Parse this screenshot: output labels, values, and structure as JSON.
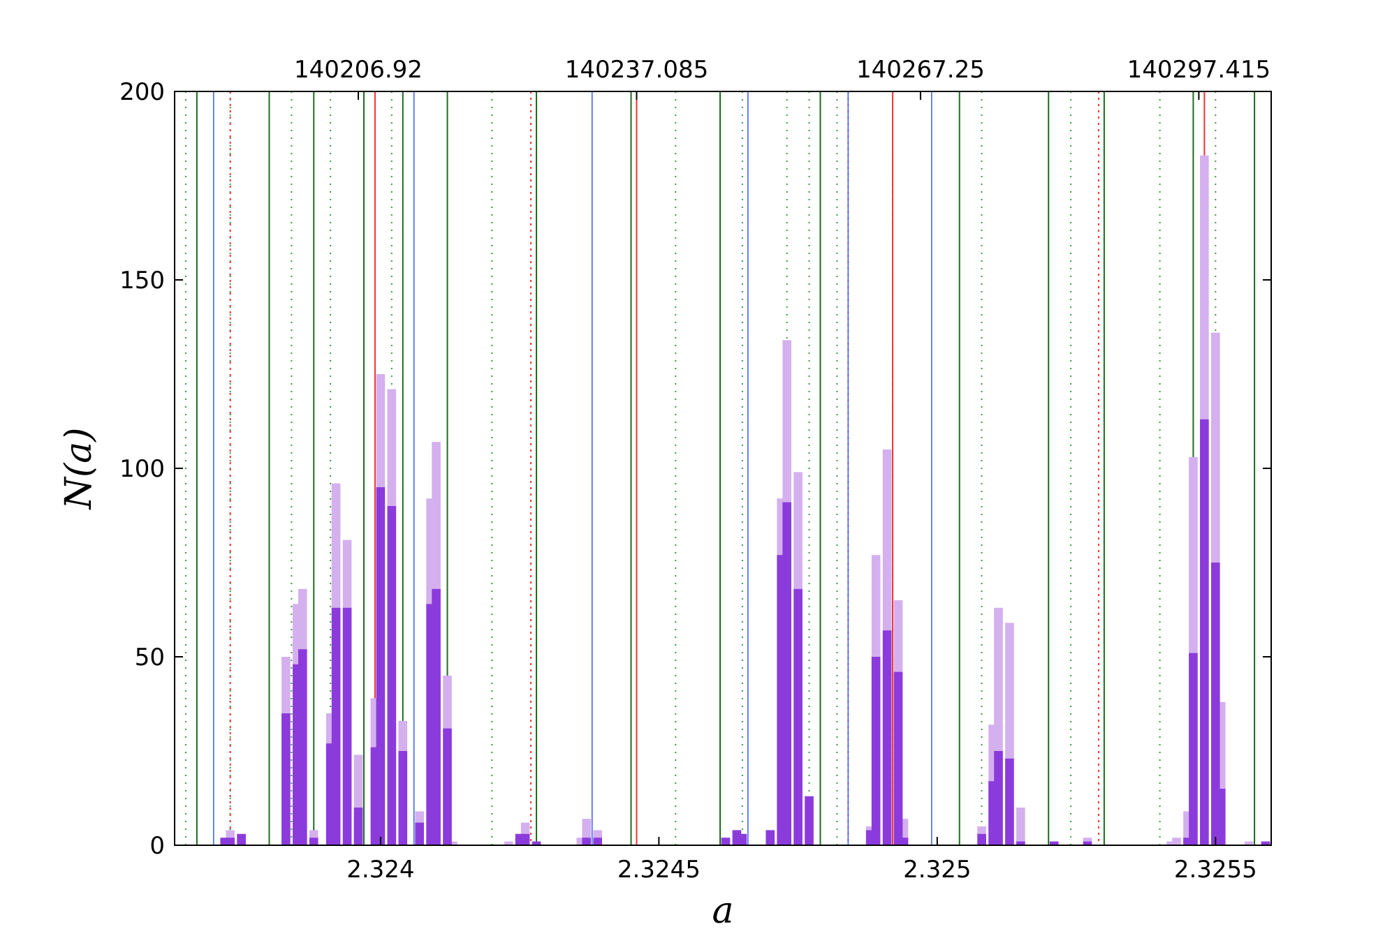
{
  "chart_data": {
    "type": "bar",
    "xlabel": "a",
    "ylabel": "N(a)",
    "xlim": [
      2.32363,
      2.3256
    ],
    "ylim": [
      0,
      200
    ],
    "x_ticks": [
      2.324,
      2.3245,
      2.325,
      2.3255
    ],
    "x_tick_labels": [
      "2.324",
      "2.3245",
      "2.325",
      "2.3255"
    ],
    "y_ticks": [
      0,
      50,
      100,
      150,
      200
    ],
    "y_tick_labels": [
      "0",
      "50",
      "100",
      "150",
      "200"
    ],
    "top_ticks": [
      2.32396,
      2.32446,
      2.32497,
      2.32547
    ],
    "top_tick_labels": [
      "140206.92",
      "140237.085",
      "140267.25",
      "140297.415"
    ],
    "bin_width": 1.58e-05,
    "series": [
      {
        "color": "#d4b0ee",
        "values": [
          [
            2.32372,
            2
          ],
          [
            2.32373,
            4
          ],
          [
            2.32375,
            3
          ],
          [
            2.32383,
            50
          ],
          [
            2.32385,
            64
          ],
          [
            2.32386,
            68
          ],
          [
            2.32388,
            4
          ],
          [
            2.32391,
            35
          ],
          [
            2.32392,
            96
          ],
          [
            2.32394,
            81
          ],
          [
            2.32396,
            24
          ],
          [
            2.32399,
            39
          ],
          [
            2.324,
            125
          ],
          [
            2.32402,
            121
          ],
          [
            2.32404,
            33
          ],
          [
            2.32407,
            9
          ],
          [
            2.32409,
            92
          ],
          [
            2.3241,
            107
          ],
          [
            2.32412,
            45
          ],
          [
            2.32413,
            1
          ],
          [
            2.32423,
            1
          ],
          [
            2.32425,
            3
          ],
          [
            2.32426,
            6
          ],
          [
            2.32428,
            1
          ],
          [
            2.32436,
            2
          ],
          [
            2.32437,
            7
          ],
          [
            2.32439,
            4
          ],
          [
            2.32462,
            2
          ],
          [
            2.32464,
            4
          ],
          [
            2.32465,
            3
          ],
          [
            2.3247,
            4
          ],
          [
            2.32472,
            92
          ],
          [
            2.32473,
            134
          ],
          [
            2.32475,
            99
          ],
          [
            2.32477,
            13
          ],
          [
            2.32488,
            5
          ],
          [
            2.32489,
            77
          ],
          [
            2.32491,
            105
          ],
          [
            2.32493,
            65
          ],
          [
            2.32494,
            7
          ],
          [
            2.32508,
            5
          ],
          [
            2.3251,
            32
          ],
          [
            2.32511,
            63
          ],
          [
            2.32513,
            59
          ],
          [
            2.32515,
            10
          ],
          [
            2.32521,
            1
          ],
          [
            2.32527,
            2
          ],
          [
            2.32542,
            1
          ],
          [
            2.32543,
            2
          ],
          [
            2.32545,
            9
          ],
          [
            2.32546,
            103
          ],
          [
            2.32548,
            183
          ],
          [
            2.3255,
            136
          ],
          [
            2.32551,
            38
          ],
          [
            2.32556,
            1
          ],
          [
            2.32559,
            1
          ],
          [
            2.32561,
            1
          ],
          [
            2.32564,
            2
          ],
          [
            2.32567,
            20
          ],
          [
            2.32569,
            52
          ],
          [
            2.3257,
            42
          ],
          [
            2.32572,
            18
          ],
          [
            2.32573,
            2
          ],
          [
            2.32576,
            1
          ]
        ]
      },
      {
        "color": "#8b3bdc",
        "values": [
          [
            2.32372,
            2
          ],
          [
            2.32373,
            2
          ],
          [
            2.32375,
            3
          ],
          [
            2.32383,
            35
          ],
          [
            2.32385,
            48
          ],
          [
            2.32386,
            52
          ],
          [
            2.32388,
            2
          ],
          [
            2.32391,
            27
          ],
          [
            2.32392,
            63
          ],
          [
            2.32394,
            63
          ],
          [
            2.32396,
            10
          ],
          [
            2.32399,
            26
          ],
          [
            2.324,
            95
          ],
          [
            2.32402,
            90
          ],
          [
            2.32404,
            25
          ],
          [
            2.32407,
            6
          ],
          [
            2.32409,
            64
          ],
          [
            2.3241,
            68
          ],
          [
            2.32412,
            31
          ],
          [
            2.32425,
            3
          ],
          [
            2.32426,
            3
          ],
          [
            2.32428,
            1
          ],
          [
            2.32437,
            2
          ],
          [
            2.32439,
            2
          ],
          [
            2.32462,
            2
          ],
          [
            2.32464,
            4
          ],
          [
            2.32465,
            3
          ],
          [
            2.3247,
            4
          ],
          [
            2.32472,
            77
          ],
          [
            2.32473,
            91
          ],
          [
            2.32475,
            68
          ],
          [
            2.32477,
            13
          ],
          [
            2.32488,
            4
          ],
          [
            2.32489,
            50
          ],
          [
            2.32491,
            57
          ],
          [
            2.32493,
            46
          ],
          [
            2.32494,
            2
          ],
          [
            2.32508,
            3
          ],
          [
            2.3251,
            17
          ],
          [
            2.32511,
            25
          ],
          [
            2.32513,
            23
          ],
          [
            2.32515,
            1
          ],
          [
            2.32521,
            1
          ],
          [
            2.32527,
            1
          ],
          [
            2.32545,
            2
          ],
          [
            2.32546,
            51
          ],
          [
            2.32548,
            113
          ],
          [
            2.3255,
            75
          ],
          [
            2.32551,
            15
          ],
          [
            2.32559,
            1
          ],
          [
            2.32561,
            1
          ],
          [
            2.32567,
            12
          ],
          [
            2.32569,
            26
          ],
          [
            2.3257,
            26
          ],
          [
            2.32572,
            10
          ],
          [
            2.32576,
            1
          ]
        ]
      }
    ],
    "reference_lines": {
      "green_solid": [
        2.32367,
        2.3238,
        2.32388,
        2.32397,
        2.32404,
        2.32412,
        2.32428,
        2.32445,
        2.32461,
        2.32479,
        2.32504,
        2.3252,
        2.3253,
        2.32546,
        2.32557,
        2.32573
      ],
      "green_dotted": [
        2.32365,
        2.32373,
        2.32384,
        2.32391,
        2.32402,
        2.32412,
        2.3242,
        2.32453,
        2.32465,
        2.32473,
        2.32477,
        2.32482,
        2.32492,
        2.32508,
        2.32524,
        2.3254,
        2.3255,
        2.3256,
        2.32575,
        2.32583
      ],
      "blue_solid": [
        2.3237,
        2.32406,
        2.32438,
        2.32466,
        2.32484,
        2.32499
      ],
      "red_solid": [
        2.32399,
        2.32446,
        2.32492,
        2.32548
      ],
      "red_dotted": [
        2.32373,
        2.32427,
        2.32484,
        2.32529
      ],
      "colors": {
        "green": "#1e6b1e",
        "green_dotted": "#3a9a3a",
        "blue": "#4466ee",
        "red": "#ee3333"
      }
    }
  }
}
